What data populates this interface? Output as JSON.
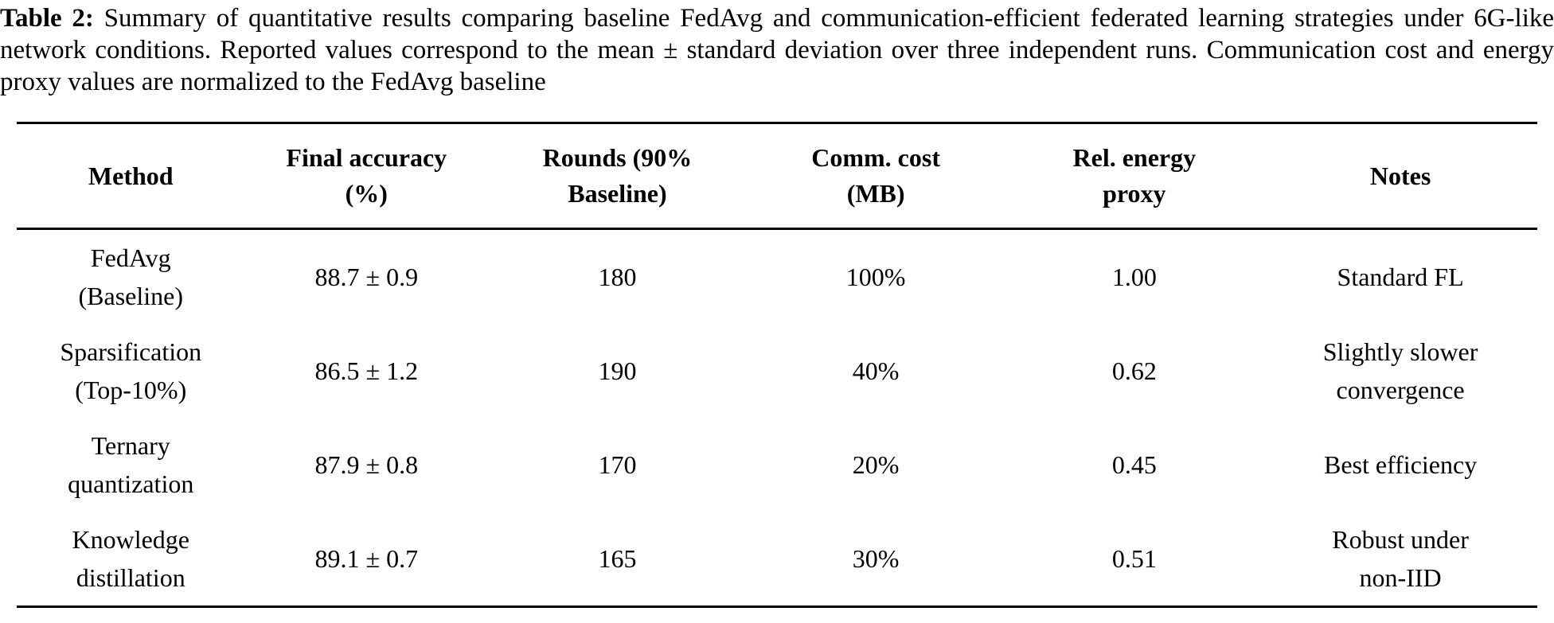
{
  "caption": {
    "label": "Table 2:",
    "text": "Summary of quantitative results comparing baseline FedAvg and communication-efficient federated learning strategies under 6G-like network conditions. Reported values correspond to the mean ± standard deviation over three independent runs. Communication cost and energy proxy values are normalized to the FedAvg baseline"
  },
  "table": {
    "headers": [
      "Method",
      "Final accuracy\n(%)",
      "Rounds (90%\nBaseline)",
      "Comm. cost\n(MB)",
      "Rel. energy\nproxy",
      "Notes"
    ],
    "rows": [
      {
        "method": "FedAvg\n(Baseline)",
        "final_accuracy": "88.7 ± 0.9",
        "rounds": "180",
        "comm_cost": "100%",
        "rel_energy_proxy": "1.00",
        "notes": "Standard FL"
      },
      {
        "method": "Sparsification\n(Top-10%)",
        "final_accuracy": "86.5 ± 1.2",
        "rounds": "190",
        "comm_cost": "40%",
        "rel_energy_proxy": "0.62",
        "notes": "Slightly slower\nconvergence"
      },
      {
        "method": "Ternary\nquantization",
        "final_accuracy": "87.9 ± 0.8",
        "rounds": "170",
        "comm_cost": "20%",
        "rel_energy_proxy": "0.45",
        "notes": "Best efficiency"
      },
      {
        "method": "Knowledge\ndistillation",
        "final_accuracy": "89.1 ± 0.7",
        "rounds": "165",
        "comm_cost": "30%",
        "rel_energy_proxy": "0.51",
        "notes": "Robust under\nnon-IID"
      }
    ],
    "text_color": "#000000",
    "background_color": "#ffffff",
    "rule_color": "#000000"
  }
}
